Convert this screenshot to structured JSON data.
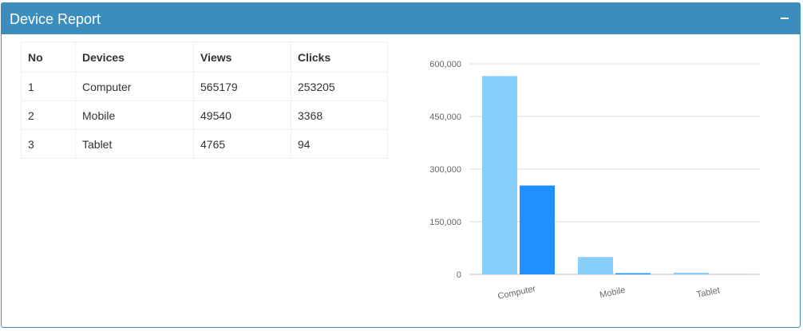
{
  "panel": {
    "title": "Device Report",
    "collapse_icon": "minus-icon",
    "header_color": "#3c8dbc"
  },
  "table": {
    "headers": [
      "No",
      "Devices",
      "Views",
      "Clicks"
    ],
    "rows": [
      [
        "1",
        "Computer",
        "565179",
        "253205"
      ],
      [
        "2",
        "Mobile",
        "49540",
        "3368"
      ],
      [
        "3",
        "Tablet",
        "4765",
        "94"
      ]
    ]
  },
  "chart_data": {
    "type": "bar",
    "categories": [
      "Computer",
      "Mobile",
      "Tablet"
    ],
    "series": [
      {
        "values": [
          565179,
          49540,
          4765
        ],
        "color": "#87cefa"
      },
      {
        "values": [
          253205,
          3368,
          94
        ],
        "color": "#1e90ff"
      }
    ],
    "ylim": [
      0,
      600000
    ],
    "yticks": [
      "0",
      "150,000",
      "300,000",
      "450,000",
      "600,000"
    ],
    "grid": true
  }
}
